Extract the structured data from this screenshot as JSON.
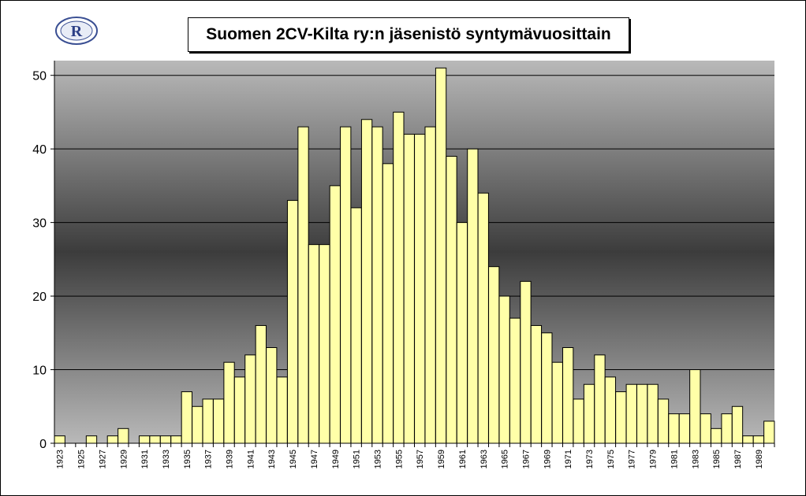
{
  "chart_data": {
    "type": "bar",
    "title": "Suomen 2CV-Kilta ry:n jäsenistö syntymävuosittain",
    "xlabel": "",
    "ylabel": "",
    "ylim": [
      0,
      52
    ],
    "yticks": [
      0,
      10,
      20,
      30,
      40,
      50
    ],
    "grid": true,
    "legend": "none",
    "categories": [
      "1923",
      "1924",
      "1925",
      "1926",
      "1927",
      "1928",
      "1929",
      "1930",
      "1931",
      "1932",
      "1933",
      "1934",
      "1935",
      "1936",
      "1937",
      "1938",
      "1939",
      "1940",
      "1941",
      "1942",
      "1943",
      "1944",
      "1945",
      "1946",
      "1947",
      "1948",
      "1949",
      "1950",
      "1951",
      "1952",
      "1953",
      "1954",
      "1955",
      "1956",
      "1957",
      "1958",
      "1959",
      "1960",
      "1961",
      "1962",
      "1963",
      "1964",
      "1965",
      "1966",
      "1967",
      "1968",
      "1969",
      "1970",
      "1971",
      "1972",
      "1973",
      "1974",
      "1975",
      "1976",
      "1977",
      "1978",
      "1979",
      "1980",
      "1981",
      "1982",
      "1983",
      "1984",
      "1985",
      "1986",
      "1987",
      "1988",
      "1989",
      "1990"
    ],
    "xtick_labels": [
      "1923",
      "1925",
      "1927",
      "1929",
      "1931",
      "1933",
      "1935",
      "1937",
      "1939",
      "1941",
      "1943",
      "1945",
      "1947",
      "1949",
      "1951",
      "1953",
      "1955",
      "1957",
      "1959",
      "1961",
      "1963",
      "1965",
      "1967",
      "1969",
      "1971",
      "1973",
      "1975",
      "1977",
      "1979",
      "1981",
      "1983",
      "1985",
      "1987",
      "1989"
    ],
    "values": [
      1,
      0,
      0,
      1,
      0,
      1,
      2,
      0,
      1,
      1,
      1,
      1,
      7,
      5,
      6,
      6,
      11,
      9,
      12,
      16,
      13,
      9,
      33,
      43,
      27,
      27,
      35,
      43,
      32,
      44,
      43,
      38,
      45,
      42,
      42,
      43,
      51,
      39,
      30,
      40,
      34,
      24,
      20,
      17,
      22,
      16,
      15,
      11,
      13,
      6,
      8,
      12,
      9,
      7,
      8,
      8,
      8,
      6,
      4,
      4,
      10,
      4,
      2,
      4,
      5,
      1,
      1,
      3
    ],
    "colors": {
      "bar_fill": "#ffffa8",
      "bar_stroke": "#000000",
      "plot_edge": "#b9b9b9",
      "plot_center": "#3c3c3c",
      "grid": "#000000"
    }
  },
  "logo": {
    "icon": "club-logo-icon",
    "letter": "R"
  }
}
